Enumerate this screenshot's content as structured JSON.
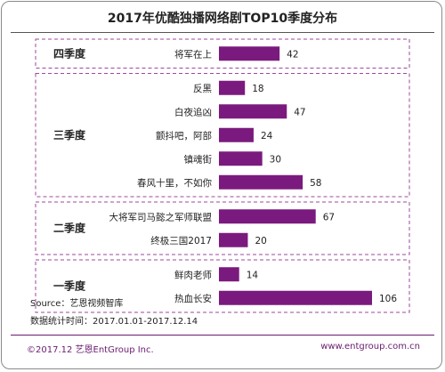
{
  "chart_data": {
    "type": "bar",
    "orientation": "horizontal",
    "title": "2017年优酷独播网络剧TOP10季度分布",
    "groups": [
      {
        "label": "四季度",
        "items": [
          {
            "category": "将军在上",
            "value": 42
          }
        ]
      },
      {
        "label": "三季度",
        "items": [
          {
            "category": "反黑",
            "value": 18
          },
          {
            "category": "白夜追凶",
            "value": 47
          },
          {
            "category": "颤抖吧，阿部",
            "value": 24
          },
          {
            "category": "镇魂街",
            "value": 30
          },
          {
            "category": "春风十里，不如你",
            "value": 58
          }
        ]
      },
      {
        "label": "二季度",
        "items": [
          {
            "category": "大将军司马懿之军师联盟",
            "value": 67
          },
          {
            "category": "终极三国2017",
            "value": 20
          }
        ]
      },
      {
        "label": "一季度",
        "items": [
          {
            "category": "鲜肉老师",
            "value": 14
          },
          {
            "category": "热血长安",
            "value": 106
          }
        ]
      }
    ],
    "bar_color": "#7b1a7e",
    "grid": false
  },
  "source": "Source：艺恩视频智库",
  "stat_period": "数据统计时间：2017.01.01-2017.12.14",
  "footer": {
    "copyright": "©2017.12 艺恩EntGroup Inc.",
    "website": "www.entgroup.com.cn"
  },
  "colors": {
    "accent": "#6a1b70",
    "group_border": "#9c4a9c"
  }
}
